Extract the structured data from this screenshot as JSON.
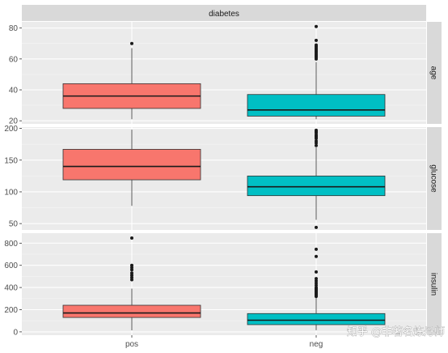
{
  "chart_data": {
    "type": "boxplot",
    "facet_title": "diabetes",
    "categories": [
      "pos",
      "neg"
    ],
    "colors": {
      "pos": "#F8766D",
      "neg": "#00BFC4"
    },
    "panels": [
      {
        "name": "age",
        "ylim": [
          18,
          84
        ],
        "yticks": [
          20,
          40,
          60,
          80
        ],
        "boxes": [
          {
            "category": "pos",
            "q1": 28,
            "median": 36,
            "q3": 44,
            "whisker_low": 21,
            "whisker_high": 67,
            "outliers": [
              70
            ]
          },
          {
            "category": "neg",
            "q1": 23,
            "median": 27,
            "q3": 37,
            "whisker_low": 21,
            "whisker_high": 58,
            "outliers": [
              60,
              61,
              62,
              63,
              64,
              65,
              66,
              67,
              68,
              69,
              72,
              81
            ]
          }
        ]
      },
      {
        "name": "glucose",
        "ylim": [
          40,
          202
        ],
        "yticks": [
          50,
          100,
          150,
          200
        ],
        "boxes": [
          {
            "category": "pos",
            "q1": 119,
            "median": 140,
            "q3": 167,
            "whisker_low": 78,
            "whisker_high": 198,
            "outliers": []
          },
          {
            "category": "neg",
            "q1": 94,
            "median": 108,
            "q3": 125,
            "whisker_low": 56,
            "whisker_high": 170,
            "outliers": [
              44,
              173,
              177,
              180,
              184,
              186,
              188,
              190,
              193,
              195,
              197
            ]
          }
        ]
      },
      {
        "name": "insulin",
        "ylim": [
          -30,
          890
        ],
        "yticks": [
          0,
          200,
          400,
          600,
          800
        ],
        "boxes": [
          {
            "category": "pos",
            "q1": 130,
            "median": 170,
            "q3": 240,
            "whisker_low": 14,
            "whisker_high": 390,
            "outliers": [
              470,
              490,
              510,
              530,
              560,
              580,
              600,
              846
            ]
          },
          {
            "category": "neg",
            "q1": 65,
            "median": 105,
            "q3": 165,
            "whisker_low": 15,
            "whisker_high": 310,
            "outliers": [
              320,
              330,
              340,
              350,
              360,
              370,
              380,
              390,
              400,
              420,
              440,
              460,
              480,
              540,
              680,
              745
            ]
          }
        ]
      }
    ],
    "grid": true
  },
  "watermark": "知乎 @非著名炼丹师"
}
